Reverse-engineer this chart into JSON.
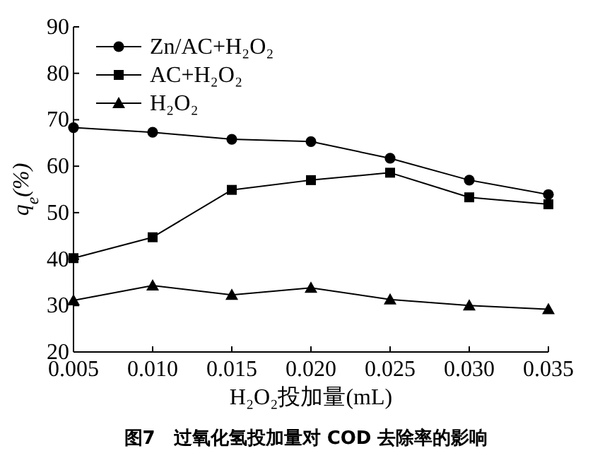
{
  "chart_data": {
    "type": "line",
    "xlabel": "H₂O₂投加量(mL)",
    "ylabel": "q$_{e}$(%)",
    "annotations": [
      "图7　过氧化氢投加量对 COD 去除率的影响"
    ],
    "x": [
      0.005,
      0.01,
      0.015,
      0.02,
      0.025,
      0.03,
      0.035
    ],
    "series": [
      {
        "name": "Zn/AC+H₂O₂",
        "color": "#000000",
        "marker": "circle",
        "values": [
          68.3,
          67.3,
          65.8,
          65.3,
          61.7,
          57.0,
          53.9
        ]
      },
      {
        "name": "AC+H₂O₂",
        "color": "#000000",
        "marker": "square",
        "values": [
          40.2,
          44.7,
          54.9,
          57.0,
          58.6,
          53.3,
          51.8
        ]
      },
      {
        "name": "H₂O₂",
        "color": "#000000",
        "marker": "triangle",
        "values": [
          31.1,
          34.3,
          32.3,
          33.8,
          31.3,
          30.0,
          29.2
        ]
      }
    ],
    "xlim": [
      0.005,
      0.035
    ],
    "xticks": [
      {
        "value": 0.005,
        "label": "0.005"
      },
      {
        "value": 0.01,
        "label": "0.010"
      },
      {
        "value": 0.015,
        "label": "0.015"
      },
      {
        "value": 0.02,
        "label": "0.020"
      },
      {
        "value": 0.025,
        "label": "0.025"
      },
      {
        "value": 0.03,
        "label": "0.030"
      },
      {
        "value": 0.035,
        "label": "0.035"
      }
    ],
    "ylim": [
      20,
      90
    ],
    "yticks": [
      20,
      30,
      40,
      50,
      60,
      70,
      80,
      90
    ],
    "grid": false,
    "legend": "top left",
    "line_style": "solid"
  }
}
